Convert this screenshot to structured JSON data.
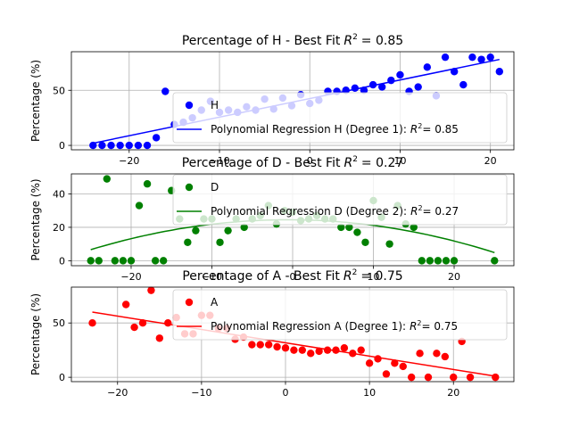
{
  "chart_data": [
    {
      "type": "scatter",
      "title": "Percentage of H - Best Fit $R^2$ = 0.85",
      "title_main": "Percentage of H - Best Fit",
      "title_r2": "= 0.85",
      "xlabel": "",
      "ylabel": "Percentage (%)",
      "xlim": [
        -26.4,
        22.6
      ],
      "ylim": [
        -4,
        85
      ],
      "xticks": [
        -20,
        -10,
        0,
        10,
        20
      ],
      "yticks": [
        0,
        50
      ],
      "grid": true,
      "legend_position": "center-right",
      "color": "#0000ff",
      "series": [
        {
          "name": "H",
          "x": [
            -24,
            -23,
            -22,
            -21,
            -20,
            -19,
            -18,
            -17,
            -16,
            -15,
            -14,
            -13,
            -12,
            -11,
            -10,
            -9,
            -8,
            -7,
            -6,
            -5,
            -4,
            -3,
            -2,
            -1,
            0,
            1,
            2,
            3,
            4,
            5,
            6,
            7,
            8,
            9,
            10,
            11,
            12,
            13,
            14,
            15,
            16,
            17,
            18,
            19,
            20,
            21
          ],
          "y": [
            0,
            0,
            0,
            0,
            0,
            0,
            0,
            7,
            49,
            19,
            21,
            25,
            32,
            40,
            30,
            32,
            30,
            35,
            32,
            42,
            33,
            43,
            36,
            46,
            38,
            41,
            49,
            49,
            50,
            52,
            50,
            55,
            53,
            59,
            64,
            49,
            53,
            71,
            45,
            80,
            67,
            55,
            80,
            78,
            80,
            67
          ]
        }
      ],
      "fit": {
        "name": "Polynomial Regression H (Degree 1): $R^2=0.85$",
        "label_main": "Polynomial Regression H (Degree 1):",
        "label_r2": "= 0.85",
        "degree": 1,
        "x": [
          -24,
          21
        ],
        "y": [
          2,
          78
        ],
        "color": "#0000ff"
      }
    },
    {
      "type": "scatter",
      "title": "Percentage of D - Best Fit $R^2$ = 0.27",
      "title_main": "Percentage of D - Best Fit",
      "title_r2": "= 0.27",
      "xlabel": "",
      "ylabel": "Percentage (%)",
      "xlim": [
        -27.4,
        27.4
      ],
      "ylim": [
        -3,
        52
      ],
      "xticks": [
        -20,
        -10,
        0,
        10,
        20
      ],
      "yticks": [
        0,
        20,
        40
      ],
      "grid": true,
      "legend_position": "center-right",
      "color": "#008000",
      "series": [
        {
          "name": "D",
          "x": [
            -25,
            -24,
            -23,
            -22,
            -21,
            -20,
            -19,
            -18,
            -17,
            -16,
            -15,
            -14,
            -13,
            -12,
            -11,
            -10,
            -9,
            -8,
            -7,
            -6,
            -5,
            -4,
            -3,
            -2,
            -1,
            0,
            1,
            2,
            3,
            4,
            5,
            6,
            7,
            8,
            9,
            10,
            11,
            12,
            13,
            14,
            15,
            16,
            17,
            18,
            19,
            20,
            25
          ],
          "y": [
            0,
            0,
            49,
            0,
            0,
            0,
            33,
            46,
            0,
            0,
            42,
            25,
            11,
            18,
            25,
            25,
            11,
            18,
            25,
            20,
            25,
            27,
            33,
            22,
            30,
            29,
            24,
            25,
            27,
            25,
            25,
            20,
            20,
            17,
            11,
            36,
            26,
            10,
            33,
            22,
            20,
            0,
            0,
            0,
            0,
            0,
            0
          ]
        }
      ],
      "fit": {
        "name": "Polynomial Regression D (Degree 2): $R^2=0.27$",
        "label_main": "Polynomial Regression D (Degree 2):",
        "label_r2": "= 0.27",
        "degree": 2,
        "coefficients": [
          -0.03,
          -0.035,
          24.5
        ],
        "x_range": [
          -25,
          25
        ],
        "color": "#008000"
      }
    },
    {
      "type": "scatter",
      "title": "Percentage of A - Best Fit $R^2$ = 0.75",
      "title_main": "Percentage of A - Best Fit",
      "title_r2": "= 0.75",
      "xlabel": "",
      "ylabel": "Percentage (%)",
      "xlim": [
        -25.5,
        27.2
      ],
      "ylim": [
        -4,
        83
      ],
      "xticks": [
        -20,
        -10,
        0,
        10,
        20
      ],
      "yticks": [
        0,
        50
      ],
      "grid": true,
      "legend_position": "upper-right",
      "color": "#ff0000",
      "series": [
        {
          "name": "A",
          "x": [
            -23,
            -19,
            -18,
            -17,
            -16,
            -15,
            -14,
            -13,
            -12,
            -11,
            -10,
            -9,
            -8,
            -7,
            -6,
            -5,
            -4,
            -3,
            -2,
            -1,
            0,
            1,
            2,
            3,
            4,
            5,
            6,
            7,
            8,
            9,
            10,
            11,
            12,
            13,
            14,
            15,
            16,
            17,
            18,
            19,
            20,
            21,
            22,
            25
          ],
          "y": [
            50,
            67,
            46,
            50,
            80,
            36,
            50,
            55,
            40,
            40,
            57,
            57,
            45,
            45,
            35,
            37,
            30,
            30,
            30,
            28,
            27,
            25,
            25,
            22,
            24,
            25,
            25,
            27,
            22,
            25,
            13,
            17,
            3,
            13,
            10,
            0,
            22,
            0,
            22,
            19,
            0,
            33,
            0,
            0
          ]
        }
      ],
      "fit": {
        "name": "Polynomial Regression A (Degree 1): $R^2=0.75$",
        "label_main": "Polynomial Regression A (Degree 1):",
        "label_r2": "= 0.75",
        "degree": 1,
        "x": [
          -23,
          25
        ],
        "y": [
          60,
          1
        ],
        "color": "#ff0000"
      }
    }
  ]
}
